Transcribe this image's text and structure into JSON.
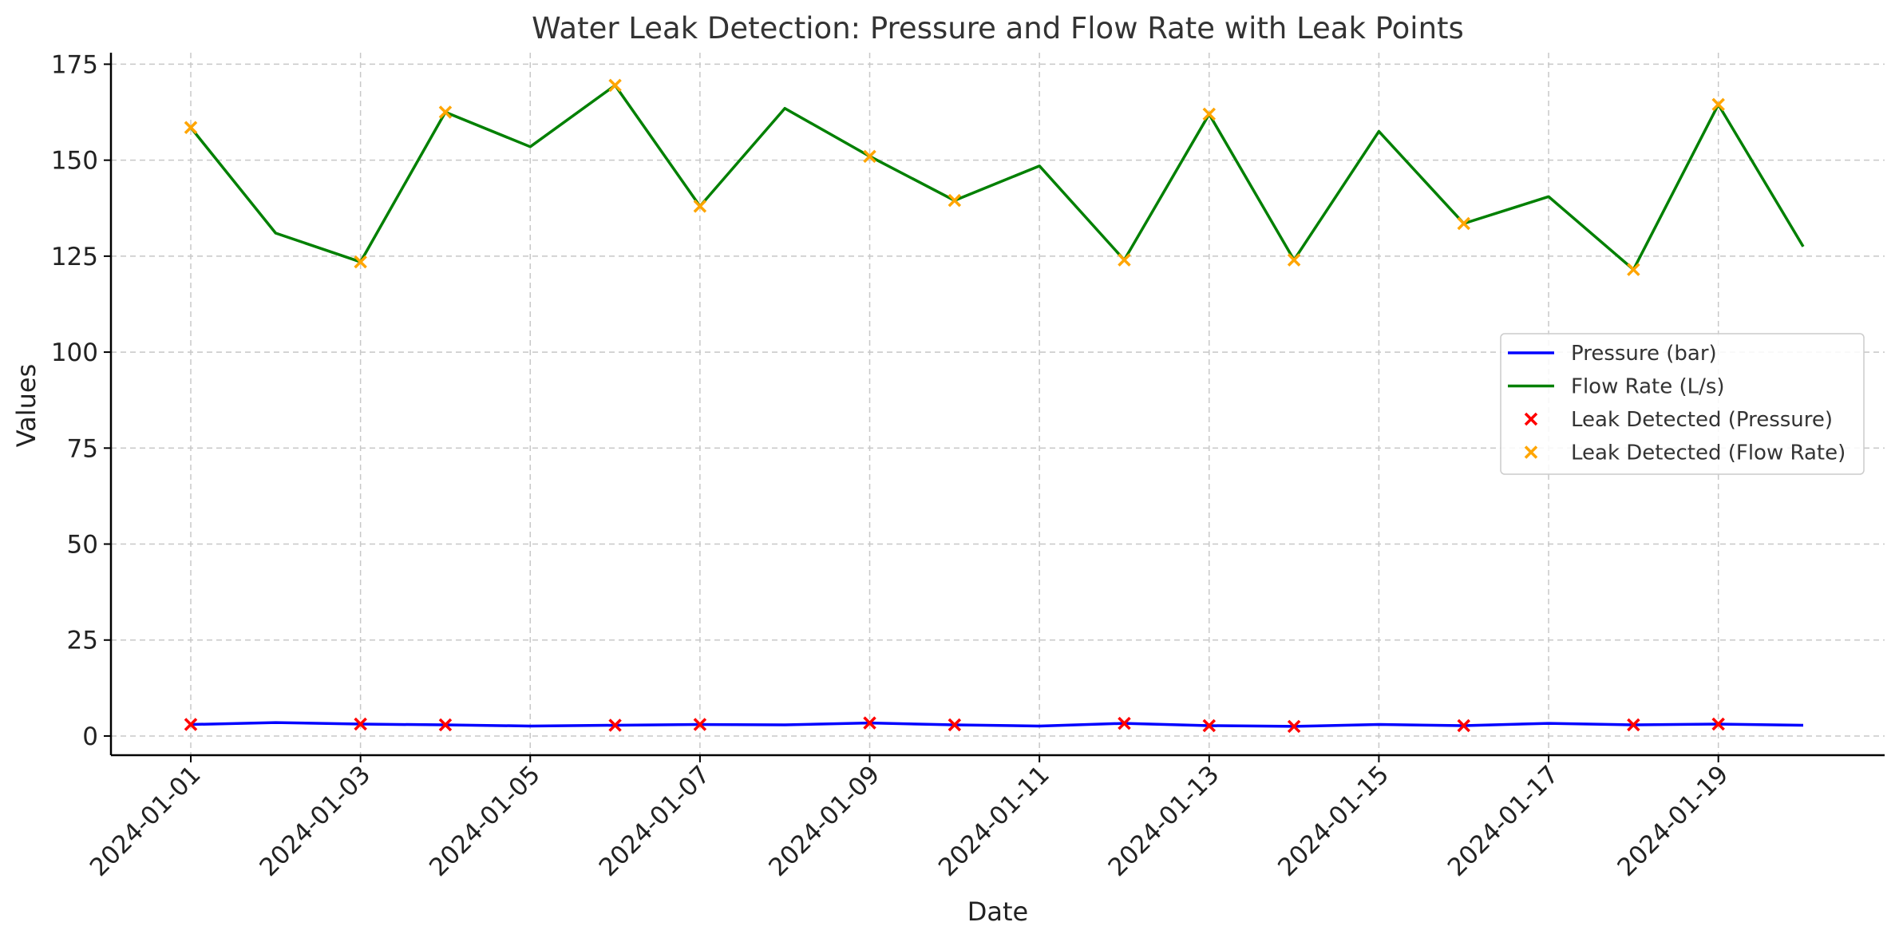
{
  "chart_data": {
    "type": "line",
    "title": "Water Leak Detection: Pressure and Flow Rate with Leak Points",
    "xlabel": "Date",
    "ylabel": "Values",
    "ylim": [
      -5,
      178
    ],
    "yticks": [
      0,
      25,
      50,
      75,
      100,
      125,
      150,
      175
    ],
    "x": [
      "2024-01-01",
      "2024-01-02",
      "2024-01-03",
      "2024-01-04",
      "2024-01-05",
      "2024-01-06",
      "2024-01-07",
      "2024-01-08",
      "2024-01-09",
      "2024-01-10",
      "2024-01-11",
      "2024-01-12",
      "2024-01-13",
      "2024-01-14",
      "2024-01-15",
      "2024-01-16",
      "2024-01-17",
      "2024-01-18",
      "2024-01-19",
      "2024-01-20"
    ],
    "xticks": [
      "2024-01-01",
      "2024-01-03",
      "2024-01-05",
      "2024-01-07",
      "2024-01-09",
      "2024-01-11",
      "2024-01-13",
      "2024-01-15",
      "2024-01-17",
      "2024-01-19"
    ],
    "grid": true,
    "legend_position": "center-right",
    "series": [
      {
        "name": "Pressure (bar)",
        "kind": "line",
        "color": "#0000ff",
        "values": [
          3.0,
          3.5,
          3.1,
          2.9,
          2.6,
          2.8,
          3.0,
          2.9,
          3.4,
          2.9,
          2.6,
          3.3,
          2.7,
          2.5,
          3.0,
          2.7,
          3.3,
          2.9,
          3.1,
          2.8
        ]
      },
      {
        "name": "Flow Rate (L/s)",
        "kind": "line",
        "color": "#008000",
        "values": [
          158.5,
          131.0,
          123.5,
          162.5,
          153.5,
          169.5,
          138.0,
          163.5,
          151.0,
          139.5,
          148.5,
          124.0,
          162.0,
          124.0,
          157.5,
          133.5,
          140.5,
          121.5,
          164.5,
          127.5
        ]
      },
      {
        "name": "Leak Detected (Pressure)",
        "kind": "scatter",
        "marker": "x",
        "color": "#ff0000",
        "points": [
          {
            "x": "2024-01-01",
            "y": 3.0
          },
          {
            "x": "2024-01-03",
            "y": 3.1
          },
          {
            "x": "2024-01-04",
            "y": 2.9
          },
          {
            "x": "2024-01-06",
            "y": 2.8
          },
          {
            "x": "2024-01-07",
            "y": 3.0
          },
          {
            "x": "2024-01-09",
            "y": 3.4
          },
          {
            "x": "2024-01-10",
            "y": 2.9
          },
          {
            "x": "2024-01-12",
            "y": 3.3
          },
          {
            "x": "2024-01-13",
            "y": 2.7
          },
          {
            "x": "2024-01-14",
            "y": 2.5
          },
          {
            "x": "2024-01-16",
            "y": 2.7
          },
          {
            "x": "2024-01-18",
            "y": 2.9
          },
          {
            "x": "2024-01-19",
            "y": 3.1
          }
        ]
      },
      {
        "name": "Leak Detected (Flow Rate)",
        "kind": "scatter",
        "marker": "x",
        "color": "#ffa500",
        "points": [
          {
            "x": "2024-01-01",
            "y": 158.5
          },
          {
            "x": "2024-01-03",
            "y": 123.5
          },
          {
            "x": "2024-01-04",
            "y": 162.5
          },
          {
            "x": "2024-01-06",
            "y": 169.5
          },
          {
            "x": "2024-01-07",
            "y": 138.0
          },
          {
            "x": "2024-01-09",
            "y": 151.0
          },
          {
            "x": "2024-01-10",
            "y": 139.5
          },
          {
            "x": "2024-01-12",
            "y": 124.0
          },
          {
            "x": "2024-01-13",
            "y": 162.0
          },
          {
            "x": "2024-01-14",
            "y": 124.0
          },
          {
            "x": "2024-01-16",
            "y": 133.5
          },
          {
            "x": "2024-01-18",
            "y": 121.5
          },
          {
            "x": "2024-01-19",
            "y": 164.5
          }
        ]
      }
    ]
  }
}
